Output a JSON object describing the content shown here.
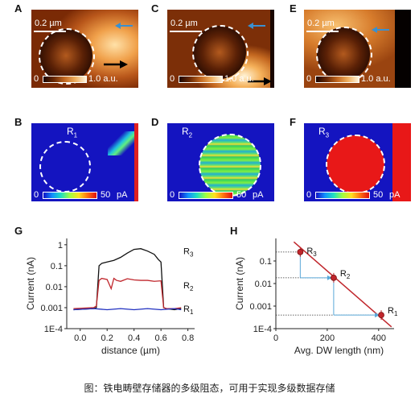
{
  "panels": {
    "A": {
      "letter": "A",
      "scale_label": "0.2 µm",
      "cb_min": "0",
      "cb_max": "1.0 a.u."
    },
    "C": {
      "letter": "C",
      "scale_label": "0.2 µm",
      "cb_min": "0",
      "cb_max": "1.0 a.u."
    },
    "E": {
      "letter": "E",
      "scale_label": "0.2 µm",
      "cb_min": "0",
      "cb_max": "1.0 a.u."
    },
    "B": {
      "letter": "B",
      "region": "R",
      "region_sub": "1",
      "cb_min": "0",
      "cb_max": "50",
      "cb_unit": "pA"
    },
    "D": {
      "letter": "D",
      "region": "R",
      "region_sub": "2",
      "cb_min": "0",
      "cb_max": "50",
      "cb_unit": "pA"
    },
    "F": {
      "letter": "F",
      "region": "R",
      "region_sub": "3",
      "cb_min": "0",
      "cb_max": "50",
      "cb_unit": "pA"
    },
    "G": {
      "letter": "G"
    },
    "H": {
      "letter": "H"
    }
  },
  "chart_data": [
    {
      "type": "line",
      "panel": "G",
      "xlabel": "distance (µm)",
      "ylabel": "Current (nA)",
      "yscale": "log",
      "xlim": [
        -0.1,
        0.85
      ],
      "ylim": [
        0.0001,
        2
      ],
      "xticks": [
        "0.0",
        "0.2",
        "0.4",
        "0.6",
        "0.8"
      ],
      "yticks": [
        "1",
        "0.1",
        "0.01",
        "0.001",
        "1E-4"
      ],
      "series": [
        {
          "name": "R3",
          "label": "R",
          "sub": "3",
          "color": "#111111",
          "x": [
            -0.05,
            0.1,
            0.12,
            0.14,
            0.16,
            0.2,
            0.25,
            0.3,
            0.35,
            0.4,
            0.45,
            0.5,
            0.55,
            0.58,
            0.6,
            0.62,
            0.64,
            0.7,
            0.75
          ],
          "y": [
            0.0008,
            0.0009,
            0.001,
            0.1,
            0.13,
            0.15,
            0.18,
            0.25,
            0.4,
            0.6,
            0.65,
            0.5,
            0.35,
            0.2,
            0.15,
            0.001,
            0.0009,
            0.0008,
            0.0009
          ]
        },
        {
          "name": "R2",
          "label": "R",
          "sub": "2",
          "color": "#c0262c",
          "x": [
            -0.05,
            0.1,
            0.12,
            0.14,
            0.16,
            0.2,
            0.23,
            0.25,
            0.27,
            0.3,
            0.35,
            0.4,
            0.45,
            0.5,
            0.55,
            0.6,
            0.62,
            0.64,
            0.7,
            0.75
          ],
          "y": [
            0.0009,
            0.001,
            0.0012,
            0.02,
            0.025,
            0.022,
            0.008,
            0.025,
            0.02,
            0.018,
            0.024,
            0.021,
            0.02,
            0.02,
            0.018,
            0.019,
            0.001,
            0.0009,
            0.0009,
            0.001
          ]
        },
        {
          "name": "R1",
          "label": "R",
          "sub": "1",
          "color": "#2030c0",
          "x": [
            -0.05,
            0.1,
            0.2,
            0.3,
            0.4,
            0.5,
            0.6,
            0.7,
            0.75
          ],
          "y": [
            0.0008,
            0.0009,
            0.0008,
            0.0009,
            0.0008,
            0.0009,
            0.0008,
            0.0009,
            0.0008
          ]
        }
      ]
    },
    {
      "type": "scatter",
      "panel": "H",
      "xlabel": "Avg. DW length (nm)",
      "ylabel": "Current (nA)",
      "yscale": "log",
      "xlim": [
        0,
        460
      ],
      "ylim": [
        0.0001,
        1
      ],
      "xticks": [
        "0",
        "200",
        "400"
      ],
      "yticks": [
        "0.1",
        "0.01",
        "0.001",
        "1E-4"
      ],
      "points": [
        {
          "name": "R3",
          "label": "R",
          "sub": "3",
          "x": 95,
          "y": 0.25
        },
        {
          "name": "R2",
          "label": "R",
          "sub": "2",
          "x": 225,
          "y": 0.018
        },
        {
          "name": "R1",
          "label": "R",
          "sub": "1",
          "x": 410,
          "y": 0.0004
        }
      ],
      "fit_line": {
        "x": [
          70,
          450
        ],
        "y": [
          0.7,
          0.00012
        ]
      }
    }
  ],
  "caption": "图：铁电畴壁存储器的多级阻态，可用于实现多级数据存储"
}
